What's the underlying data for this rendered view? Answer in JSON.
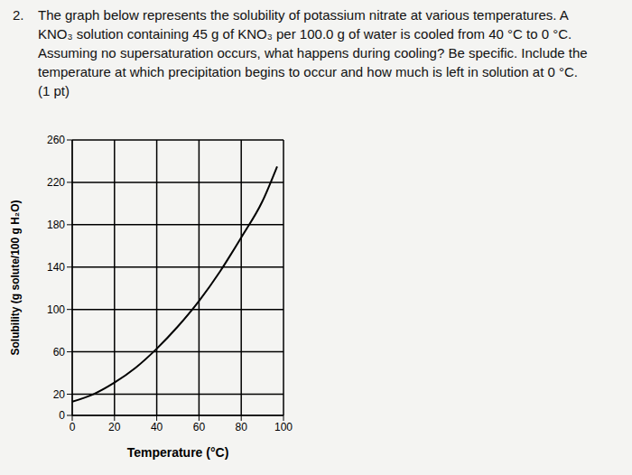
{
  "question": {
    "number": "2.",
    "lines": [
      "The graph below represents the solubility of potassium nitrate at various temperatures. A",
      "KNO₃ solution containing 45 g of KNO₃ per 100.0 g of water is cooled from 40 °C to 0 °C.",
      "Assuming no supersaturation occurs, what happens during cooling? Be specific. Include the",
      "temperature at which precipitation begins to occur and how much is left in solution at 0 °C.",
      "(1 pt)"
    ]
  },
  "chart_data": {
    "type": "line",
    "x_label": "Temperature (°C)",
    "y_label": "Solubility (g solute/100 g H₂O)",
    "x": [
      0,
      10,
      20,
      30,
      40,
      50,
      60,
      70,
      80,
      90,
      97
    ],
    "values": [
      13,
      20,
      31,
      45,
      63,
      84,
      108,
      136,
      168,
      202,
      235
    ],
    "color": "#000000",
    "xlim": [
      0,
      100
    ],
    "xticks": [
      0,
      20,
      40,
      60,
      80,
      100
    ],
    "ylim": [
      0,
      260
    ],
    "yticks": [
      0,
      20,
      60,
      100,
      140,
      180,
      220,
      260
    ],
    "grid": true
  }
}
